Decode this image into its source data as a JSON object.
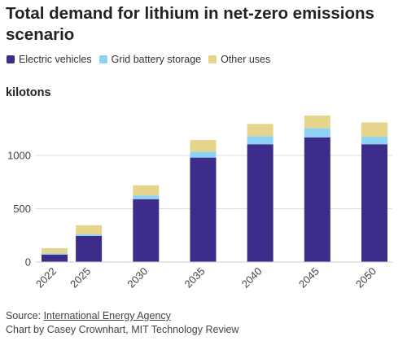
{
  "chart_data": {
    "type": "bar",
    "stacked": true,
    "title": "Total demand for lithium in net-zero emissions scenario",
    "ylabel": "kilotons",
    "categories": [
      "2022",
      "2025",
      "2030",
      "2035",
      "2040",
      "2045",
      "2050"
    ],
    "series": [
      {
        "name": "Electric vehicles",
        "color": "#3e2c8a",
        "values": [
          70,
          245,
          590,
          980,
          1105,
          1170,
          1105
        ]
      },
      {
        "name": "Grid battery storage",
        "color": "#8fd3f4",
        "values": [
          10,
          15,
          35,
          55,
          75,
          85,
          70
        ]
      },
      {
        "name": "Other uses",
        "color": "#e5d58c",
        "values": [
          50,
          85,
          95,
          110,
          115,
          120,
          135
        ]
      }
    ],
    "ylim": [
      0,
      1400
    ],
    "yticks": [
      0,
      500,
      1000
    ],
    "grid": true,
    "legend": "top-left"
  },
  "source": {
    "prefix": "Source: ",
    "link_text": "International Energy Agency"
  },
  "credit": "Chart by Casey Crownhart, MIT Technology Review"
}
